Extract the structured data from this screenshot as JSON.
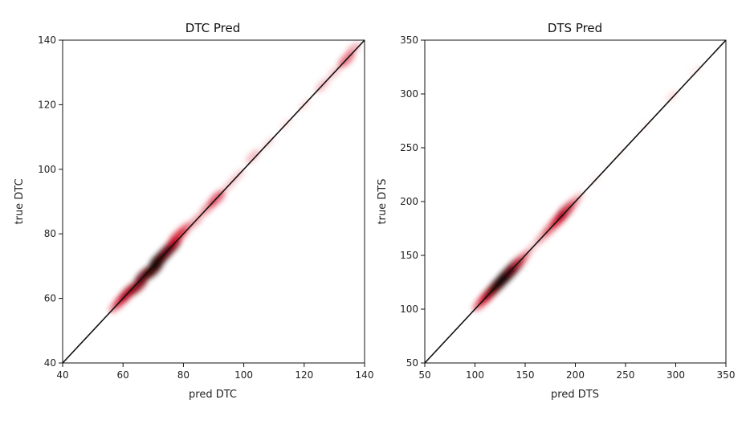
{
  "chart_data": [
    {
      "type": "heatmap",
      "title": "DTC Pred",
      "xlabel": "pred DTC",
      "ylabel": "true DTC",
      "xlim": [
        40,
        140
      ],
      "ylim": [
        40,
        140
      ],
      "xticks": [
        "40",
        "60",
        "80",
        "100",
        "120",
        "140"
      ],
      "yticks": [
        "40",
        "60",
        "80",
        "100",
        "120",
        "140"
      ],
      "grid": false,
      "reference_line": {
        "from": [
          40,
          40
        ],
        "to": [
          140,
          140
        ],
        "color": "#111111"
      },
      "colors": {
        "density_low": "#ffe6e6",
        "density_mid": "#d0021b",
        "density_high": "#1a0000"
      },
      "density_points": [
        {
          "x": 58,
          "y": 58,
          "density": 0.55
        },
        {
          "x": 60,
          "y": 60,
          "density": 0.7
        },
        {
          "x": 62,
          "y": 62,
          "density": 0.8
        },
        {
          "x": 65,
          "y": 64,
          "density": 0.85
        },
        {
          "x": 67,
          "y": 67,
          "density": 0.9
        },
        {
          "x": 70,
          "y": 69,
          "density": 0.95
        },
        {
          "x": 72,
          "y": 72,
          "density": 1.0
        },
        {
          "x": 74,
          "y": 74,
          "density": 0.95
        },
        {
          "x": 76,
          "y": 76,
          "density": 0.9
        },
        {
          "x": 78,
          "y": 79,
          "density": 0.75
        },
        {
          "x": 80,
          "y": 81,
          "density": 0.6
        },
        {
          "x": 84,
          "y": 84,
          "density": 0.45
        },
        {
          "x": 88,
          "y": 88,
          "density": 0.5
        },
        {
          "x": 91,
          "y": 91,
          "density": 0.65
        },
        {
          "x": 95,
          "y": 95,
          "density": 0.3
        },
        {
          "x": 98,
          "y": 98,
          "density": 0.28
        },
        {
          "x": 103,
          "y": 104,
          "density": 0.35
        },
        {
          "x": 108,
          "y": 108,
          "density": 0.2
        },
        {
          "x": 114,
          "y": 114,
          "density": 0.15
        },
        {
          "x": 120,
          "y": 120,
          "density": 0.18
        },
        {
          "x": 126,
          "y": 126,
          "density": 0.35
        },
        {
          "x": 130,
          "y": 130,
          "density": 0.3
        },
        {
          "x": 134,
          "y": 134,
          "density": 0.6
        },
        {
          "x": 136,
          "y": 137,
          "density": 0.4
        }
      ]
    },
    {
      "type": "heatmap",
      "title": "DTS Pred",
      "xlabel": "pred DTS",
      "ylabel": "true DTS",
      "xlim": [
        50,
        350
      ],
      "ylim": [
        50,
        350
      ],
      "xticks": [
        "50",
        "100",
        "150",
        "200",
        "250",
        "300",
        "350"
      ],
      "yticks": [
        "50",
        "100",
        "150",
        "200",
        "250",
        "300",
        "350"
      ],
      "grid": false,
      "reference_line": {
        "from": [
          50,
          50
        ],
        "to": [
          350,
          350
        ],
        "color": "#111111"
      },
      "colors": {
        "density_low": "#ffe6e6",
        "density_mid": "#d0021b",
        "density_high": "#1a0000"
      },
      "density_points": [
        {
          "x": 106,
          "y": 106,
          "density": 0.6
        },
        {
          "x": 112,
          "y": 112,
          "density": 0.75
        },
        {
          "x": 118,
          "y": 118,
          "density": 0.85
        },
        {
          "x": 124,
          "y": 124,
          "density": 0.95
        },
        {
          "x": 130,
          "y": 130,
          "density": 1.0
        },
        {
          "x": 135,
          "y": 135,
          "density": 1.0
        },
        {
          "x": 140,
          "y": 140,
          "density": 0.9
        },
        {
          "x": 146,
          "y": 146,
          "density": 0.6
        },
        {
          "x": 152,
          "y": 152,
          "density": 0.35
        },
        {
          "x": 160,
          "y": 160,
          "density": 0.25
        },
        {
          "x": 168,
          "y": 168,
          "density": 0.45
        },
        {
          "x": 176,
          "y": 176,
          "density": 0.6
        },
        {
          "x": 184,
          "y": 184,
          "density": 0.75
        },
        {
          "x": 190,
          "y": 191,
          "density": 0.8
        },
        {
          "x": 196,
          "y": 197,
          "density": 0.55
        },
        {
          "x": 202,
          "y": 203,
          "density": 0.3
        },
        {
          "x": 220,
          "y": 220,
          "density": 0.08
        },
        {
          "x": 245,
          "y": 245,
          "density": 0.06
        },
        {
          "x": 270,
          "y": 270,
          "density": 0.07
        },
        {
          "x": 296,
          "y": 298,
          "density": 0.18
        },
        {
          "x": 320,
          "y": 322,
          "density": 0.1
        }
      ]
    }
  ]
}
